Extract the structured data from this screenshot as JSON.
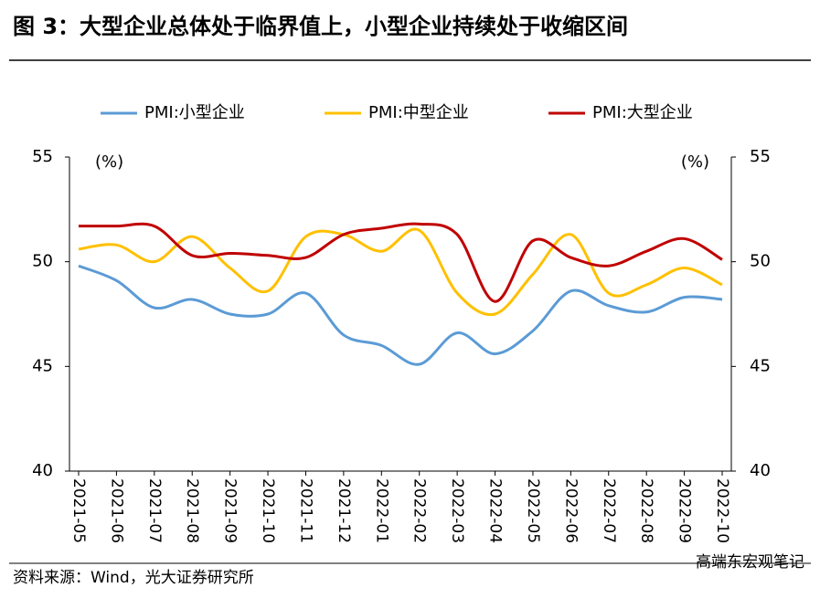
{
  "title": "图 3：大型企业总体处于临界值上，小型企业持续处于收缩区间",
  "source": "资料来源：Wind，光大证券研究所",
  "watermark": "高端东宏观笔记",
  "chart_data": {
    "type": "line",
    "y_label": "(%)",
    "y2_label": "(%)",
    "categories": [
      "2021-05",
      "2021-06",
      "2021-07",
      "2021-08",
      "2021-09",
      "2021-10",
      "2021-11",
      "2021-12",
      "2022-01",
      "2022-02",
      "2022-03",
      "2022-04",
      "2022-05",
      "2022-06",
      "2022-07",
      "2022-08",
      "2022-09",
      "2022-10"
    ],
    "series": [
      {
        "name": "PMI:小型企业",
        "color": "#5b9bd5",
        "values": [
          49.8,
          49.1,
          47.8,
          48.2,
          47.5,
          47.5,
          48.5,
          46.5,
          46.0,
          45.1,
          46.6,
          45.6,
          46.7,
          48.6,
          47.9,
          47.6,
          48.3,
          48.2
        ]
      },
      {
        "name": "PMI:中型企业",
        "color": "#ffc000",
        "values": [
          50.6,
          50.8,
          50.0,
          51.2,
          49.7,
          48.6,
          51.2,
          51.3,
          50.5,
          51.5,
          48.5,
          47.5,
          49.4,
          51.3,
          48.5,
          48.9,
          49.7,
          48.9
        ]
      },
      {
        "name": "PMI:大型企业",
        "color": "#c00000",
        "values": [
          51.7,
          51.7,
          51.7,
          50.3,
          50.4,
          50.3,
          50.2,
          51.3,
          51.6,
          51.8,
          51.3,
          48.1,
          51.0,
          50.2,
          49.8,
          50.5,
          51.1,
          50.1
        ]
      }
    ],
    "ylim": [
      40,
      55
    ],
    "yticks": [
      40,
      45,
      50,
      55
    ],
    "y2lim": [
      40,
      55
    ],
    "y2ticks": [
      40,
      45,
      50,
      55
    ],
    "legend": "top"
  }
}
